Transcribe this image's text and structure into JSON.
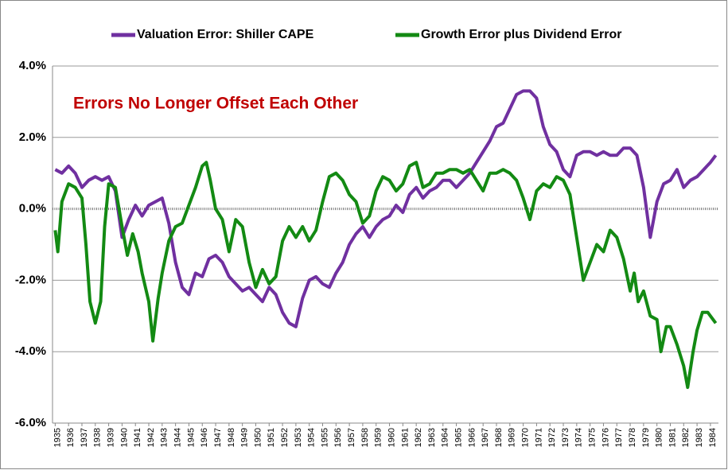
{
  "chart_data": {
    "type": "line",
    "annotation": "Errors No Longer Offset Each Other",
    "ylim": [
      -6,
      4
    ],
    "yticks": [
      {
        "value": -6,
        "label": "-6.0%"
      },
      {
        "value": -4,
        "label": "-4.0%"
      },
      {
        "value": -2,
        "label": "-2.0%"
      },
      {
        "value": 0,
        "label": "0.0%"
      },
      {
        "value": 2,
        "label": "2.0%"
      },
      {
        "value": 4,
        "label": "4.0%"
      }
    ],
    "xlim": [
      1934.8,
      1984.6
    ],
    "xticks": [
      1935,
      1936,
      1937,
      1938,
      1939,
      1940,
      1941,
      1942,
      1943,
      1944,
      1945,
      1946,
      1947,
      1948,
      1949,
      1950,
      1951,
      1952,
      1953,
      1954,
      1955,
      1956,
      1957,
      1958,
      1959,
      1960,
      1961,
      1962,
      1963,
      1964,
      1965,
      1966,
      1967,
      1968,
      1969,
      1970,
      1971,
      1972,
      1973,
      1974,
      1975,
      1976,
      1977,
      1978,
      1979,
      1980,
      1981,
      1982,
      1983,
      1984
    ],
    "grid": true,
    "series": [
      {
        "name": "Valuation Error: Shiller CAPE",
        "color": "#7030a0",
        "x": [
          1935,
          1935.5,
          1936,
          1936.5,
          1937,
          1937.5,
          1938,
          1938.5,
          1939,
          1939.5,
          1940,
          1940.5,
          1941,
          1941.5,
          1942,
          1942.5,
          1943,
          1943.5,
          1944,
          1944.5,
          1945,
          1945.5,
          1946,
          1946.5,
          1947,
          1947.5,
          1948,
          1948.5,
          1949,
          1949.5,
          1950,
          1950.5,
          1951,
          1951.5,
          1952,
          1952.5,
          1953,
          1953.5,
          1954,
          1954.5,
          1955,
          1955.5,
          1956,
          1956.5,
          1957,
          1957.5,
          1958,
          1958.5,
          1959,
          1959.5,
          1960,
          1960.5,
          1961,
          1961.5,
          1962,
          1962.5,
          1963,
          1963.5,
          1964,
          1964.5,
          1965,
          1965.5,
          1966,
          1966.5,
          1967,
          1967.5,
          1968,
          1968.5,
          1969,
          1969.5,
          1970,
          1970.5,
          1971,
          1971.5,
          1972,
          1972.5,
          1973,
          1973.5,
          1974,
          1974.5,
          1975,
          1975.5,
          1976,
          1976.5,
          1977,
          1977.5,
          1978,
          1978.5,
          1979,
          1979.5,
          1980,
          1980.5,
          1981,
          1981.5,
          1982,
          1982.5,
          1983,
          1983.5,
          1984,
          1984.4
        ],
        "values": [
          1.1,
          1.0,
          1.2,
          1.0,
          0.6,
          0.8,
          0.9,
          0.8,
          0.9,
          0.5,
          -0.8,
          -0.3,
          0.1,
          -0.2,
          0.1,
          0.2,
          0.3,
          -0.4,
          -1.5,
          -2.2,
          -2.4,
          -1.8,
          -1.9,
          -1.4,
          -1.3,
          -1.5,
          -1.9,
          -2.1,
          -2.3,
          -2.2,
          -2.4,
          -2.6,
          -2.2,
          -2.4,
          -2.9,
          -3.2,
          -3.3,
          -2.5,
          -2.0,
          -1.9,
          -2.1,
          -2.2,
          -1.8,
          -1.5,
          -1.0,
          -0.7,
          -0.5,
          -0.8,
          -0.5,
          -0.3,
          -0.2,
          0.1,
          -0.1,
          0.4,
          0.6,
          0.3,
          0.5,
          0.6,
          0.8,
          0.8,
          0.6,
          0.8,
          1.0,
          1.3,
          1.6,
          1.9,
          2.3,
          2.4,
          2.8,
          3.2,
          3.3,
          3.3,
          3.1,
          2.3,
          1.8,
          1.6,
          1.1,
          0.9,
          1.5,
          1.6,
          1.6,
          1.5,
          1.6,
          1.5,
          1.5,
          1.7,
          1.7,
          1.5,
          0.6,
          -0.8,
          0.2,
          0.7,
          0.8,
          1.1,
          0.6,
          0.8,
          0.9,
          1.1,
          1.3,
          1.5
        ]
      },
      {
        "name": "Growth Error plus Dividend Error",
        "color": "#138a13",
        "x": [
          1935,
          1935.2,
          1935.5,
          1936,
          1936.5,
          1937,
          1937.3,
          1937.6,
          1938,
          1938.4,
          1938.7,
          1939,
          1939.5,
          1940,
          1940.4,
          1940.8,
          1941.2,
          1941.5,
          1942,
          1942.3,
          1942.7,
          1943,
          1943.5,
          1944,
          1944.5,
          1945,
          1945.5,
          1946,
          1946.3,
          1946.6,
          1947,
          1947.5,
          1948,
          1948.5,
          1949,
          1949.5,
          1950,
          1950.5,
          1951,
          1951.5,
          1952,
          1952.5,
          1953,
          1953.5,
          1954,
          1954.5,
          1955,
          1955.5,
          1956,
          1956.5,
          1957,
          1957.5,
          1958,
          1958.5,
          1959,
          1959.5,
          1960,
          1960.5,
          1961,
          1961.5,
          1962,
          1962.5,
          1963,
          1963.5,
          1964,
          1964.5,
          1965,
          1965.5,
          1966,
          1966.5,
          1967,
          1967.5,
          1968,
          1968.5,
          1969,
          1969.5,
          1970,
          1970.5,
          1971,
          1971.5,
          1972,
          1972.5,
          1973,
          1973.5,
          1974,
          1974.5,
          1975,
          1975.5,
          1976,
          1976.5,
          1977,
          1977.5,
          1978,
          1978.3,
          1978.6,
          1979,
          1979.5,
          1980,
          1980.3,
          1980.7,
          1981,
          1981.5,
          1982,
          1982.3,
          1982.7,
          1983,
          1983.4,
          1983.8,
          1984,
          1984.4
        ],
        "values": [
          -0.6,
          -1.2,
          0.2,
          0.7,
          0.6,
          0.3,
          -1.0,
          -2.6,
          -3.2,
          -2.6,
          -0.5,
          0.7,
          0.6,
          -0.5,
          -1.3,
          -0.7,
          -1.2,
          -1.8,
          -2.6,
          -3.7,
          -2.5,
          -1.8,
          -0.9,
          -0.5,
          -0.4,
          0.1,
          0.6,
          1.2,
          1.3,
          0.8,
          0.0,
          -0.3,
          -1.2,
          -0.3,
          -0.5,
          -1.5,
          -2.2,
          -1.7,
          -2.1,
          -1.9,
          -0.9,
          -0.5,
          -0.8,
          -0.5,
          -0.9,
          -0.6,
          0.2,
          0.9,
          1.0,
          0.8,
          0.4,
          0.2,
          -0.4,
          -0.2,
          0.5,
          0.9,
          0.8,
          0.5,
          0.7,
          1.2,
          1.3,
          0.6,
          0.7,
          1.0,
          1.0,
          1.1,
          1.1,
          1.0,
          1.1,
          0.8,
          0.5,
          1.0,
          1.0,
          1.1,
          1.0,
          0.8,
          0.3,
          -0.3,
          0.5,
          0.7,
          0.6,
          0.9,
          0.8,
          0.4,
          -0.8,
          -2.0,
          -1.5,
          -1.0,
          -1.2,
          -0.6,
          -0.8,
          -1.4,
          -2.3,
          -1.8,
          -2.6,
          -2.3,
          -3.0,
          -3.1,
          -4.0,
          -3.3,
          -3.3,
          -3.8,
          -4.4,
          -5.0,
          -4.0,
          -3.4,
          -2.9,
          -2.9,
          -3.0,
          -3.2
        ]
      }
    ]
  }
}
